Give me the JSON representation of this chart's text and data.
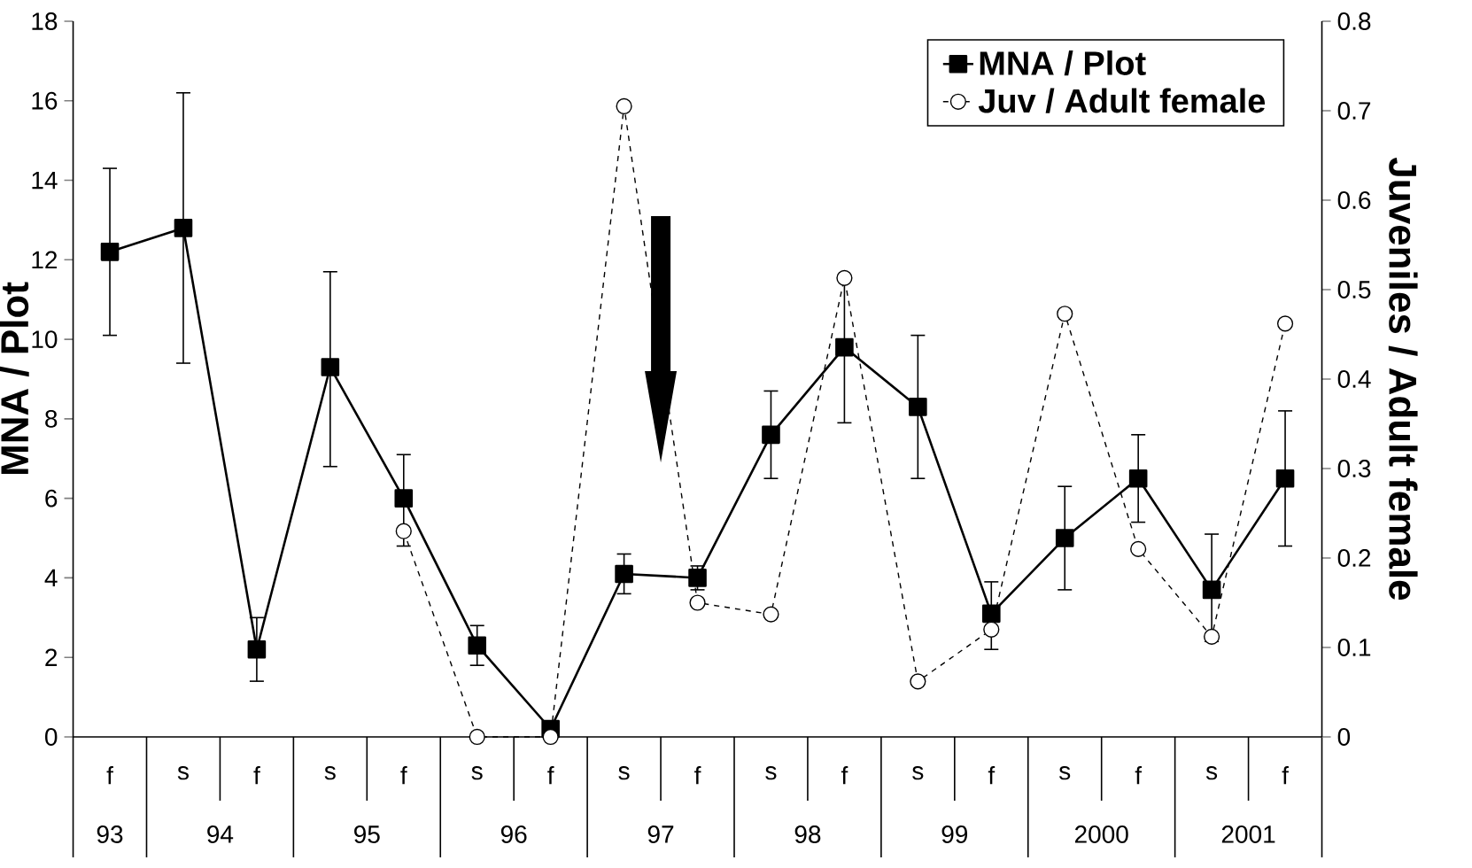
{
  "chart_data": {
    "type": "line",
    "ylabel": "MNA / Plot",
    "y2label": "Juveniles / Adult female",
    "categories": [
      "f",
      "s",
      "f",
      "s",
      "f",
      "s",
      "f",
      "s",
      "f",
      "s",
      "f",
      "s",
      "f",
      "s",
      "f",
      "s",
      "f"
    ],
    "annotations": [
      "93",
      "94",
      "95",
      "96",
      "97",
      "98",
      "99",
      "2000",
      "2001"
    ],
    "series": [
      {
        "name": "MNA / Plot",
        "color": "#000000",
        "marker": "square",
        "line_style": "solid",
        "values": [
          12.2,
          12.8,
          2.2,
          9.3,
          6.0,
          2.3,
          0.2,
          4.1,
          4.0,
          7.6,
          9.8,
          8.3,
          3.1,
          5.0,
          6.5,
          3.7,
          6.5
        ],
        "errors": [
          [
            10.1,
            14.3
          ],
          [
            9.4,
            16.2
          ],
          [
            1.4,
            3.0
          ],
          [
            6.8,
            11.7
          ],
          [
            4.8,
            7.1
          ],
          [
            1.8,
            2.8
          ],
          [
            0.0,
            0.4
          ],
          [
            3.6,
            4.6
          ],
          [
            3.7,
            4.3
          ],
          [
            6.5,
            8.7
          ],
          [
            7.9,
            11.6
          ],
          [
            6.5,
            10.1
          ],
          [
            2.2,
            3.9
          ],
          [
            3.7,
            6.3
          ],
          [
            5.4,
            7.6
          ],
          [
            2.4,
            5.1
          ],
          [
            4.8,
            8.2
          ]
        ]
      },
      {
        "name": "Juv / Adult female",
        "color": "#000000",
        "marker": "circle",
        "line_style": "dashed",
        "axis": "y2",
        "values": [
          null,
          null,
          null,
          null,
          0.23,
          0.0,
          0.0,
          0.705,
          0.15,
          0.137,
          0.513,
          0.062,
          0.12,
          0.473,
          0.21,
          0.112,
          0.462
        ]
      }
    ],
    "ylim": [
      0,
      18
    ],
    "yticks": [
      0,
      2,
      4,
      6,
      8,
      10,
      12,
      14,
      16,
      18
    ],
    "y2lim": [
      0,
      0.8
    ],
    "y2ticks": [
      0,
      0.1,
      0.2,
      0.3,
      0.4,
      0.5,
      0.6,
      0.7,
      0.8
    ],
    "legend": "top right"
  }
}
